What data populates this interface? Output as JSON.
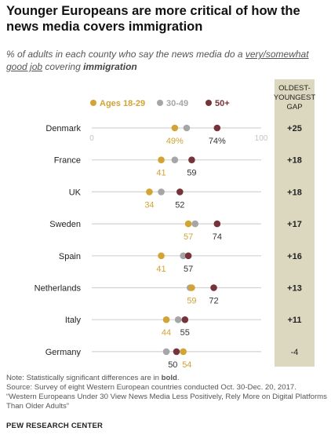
{
  "title": "Younger Europeans are more critical of how the news media covers immigration",
  "subtitle": {
    "part1": "% of adults in each county who say the news media do a ",
    "underlined": "very/somewhat good job",
    "part2": " covering ",
    "bold": "immigration"
  },
  "colors": {
    "young": "#d2a335",
    "mid": "#a6a6a6",
    "old": "#76333a",
    "gap_bg": "#dcd8c0",
    "line": "#d3d3d3",
    "label_text": "#333333"
  },
  "chart_data": {
    "type": "dot",
    "xlim": [
      0,
      100
    ],
    "axis_tick_labels": [
      "0",
      "100"
    ],
    "legend": [
      {
        "key": "young",
        "label": "Ages 18-29"
      },
      {
        "key": "mid",
        "label": "30-49"
      },
      {
        "key": "old",
        "label": "50+"
      }
    ],
    "gap_header": [
      "OLDEST-",
      "YOUNGEST",
      "GAP"
    ],
    "rows": [
      {
        "country": "Denmark",
        "young": 49,
        "mid": 56,
        "old": 74,
        "young_label": "49%",
        "old_label": "74%",
        "gap": "+25"
      },
      {
        "country": "France",
        "young": 41,
        "mid": 49,
        "old": 59,
        "young_label": "41",
        "old_label": "59",
        "gap": "+18"
      },
      {
        "country": "UK",
        "young": 34,
        "mid": 41,
        "old": 52,
        "young_label": "34",
        "old_label": "52",
        "gap": "+18"
      },
      {
        "country": "Sweden",
        "young": 57,
        "mid": 61,
        "old": 74,
        "young_label": "57",
        "old_label": "74",
        "gap": "+17"
      },
      {
        "country": "Spain",
        "young": 41,
        "mid": 54,
        "old": 57,
        "young_label": "41",
        "old_label": "57",
        "gap": "+16"
      },
      {
        "country": "Netherlands",
        "young": 59,
        "mid": 58,
        "old": 72,
        "young_label": "59",
        "old_label": "72",
        "gap": "+13"
      },
      {
        "country": "Italy",
        "young": 44,
        "mid": 51,
        "old": 55,
        "young_label": "44",
        "old_label": "55",
        "gap": "+11"
      },
      {
        "country": "Germany",
        "young": 54,
        "mid": 44,
        "old": 50,
        "young_label": "54",
        "old_label": "50",
        "gap": "-4"
      }
    ]
  },
  "footer": {
    "note_prefix": "Note: Statistically significant differences are in ",
    "note_bold": "bold",
    "note_suffix": ".",
    "source": "Source: Survey of eight Western European countries conducted Oct. 30-Dec. 20, 2017.",
    "report": "“Western Europeans Under 30 View News Media Less Positively, Rely More on Digital Platforms Than Older Adults”",
    "brand": "PEW RESEARCH CENTER"
  }
}
